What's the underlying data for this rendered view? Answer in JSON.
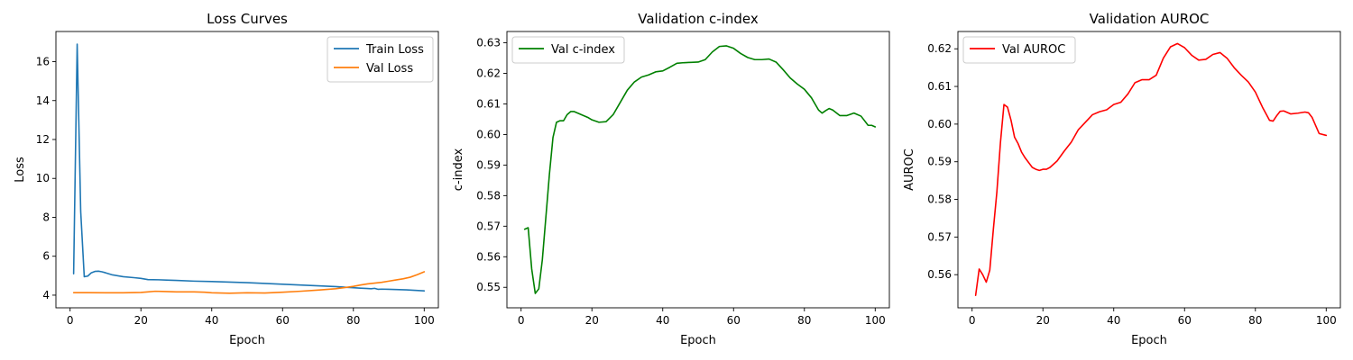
{
  "chart_data": [
    {
      "type": "line",
      "title": "Loss Curves",
      "xlabel": "Epoch",
      "ylabel": "Loss",
      "xlim": [
        -4,
        104
      ],
      "ylim": [
        3.35,
        17.55
      ],
      "xticks": [
        0,
        20,
        40,
        60,
        80,
        100
      ],
      "yticks": [
        4,
        6,
        8,
        10,
        12,
        14,
        16
      ],
      "tick_decimals": 0,
      "grid": false,
      "legend": "top-right",
      "series": [
        {
          "name": "Train Loss",
          "color": "#1f77b4",
          "x": [
            1,
            2,
            3,
            4,
            5,
            6,
            7,
            8,
            9,
            10,
            12,
            15,
            18,
            20,
            22,
            25,
            28,
            30,
            35,
            40,
            45,
            50,
            55,
            60,
            65,
            70,
            75,
            80,
            82,
            84,
            85,
            86,
            87,
            88,
            90,
            95,
            100
          ],
          "y": [
            5.1,
            16.9,
            8.3,
            4.95,
            4.98,
            5.15,
            5.22,
            5.23,
            5.2,
            5.15,
            5.04,
            4.95,
            4.9,
            4.86,
            4.8,
            4.79,
            4.77,
            4.76,
            4.72,
            4.7,
            4.67,
            4.64,
            4.6,
            4.56,
            4.52,
            4.48,
            4.44,
            4.38,
            4.36,
            4.34,
            4.33,
            4.35,
            4.3,
            4.31,
            4.3,
            4.27,
            4.22
          ]
        },
        {
          "name": "Val Loss",
          "color": "#ff7f0e",
          "x": [
            1,
            5,
            10,
            15,
            20,
            22,
            24,
            26,
            30,
            35,
            38,
            40,
            45,
            50,
            55,
            60,
            65,
            70,
            75,
            78,
            80,
            82,
            84,
            86,
            88,
            90,
            92,
            94,
            96,
            98,
            100
          ],
          "y": [
            4.13,
            4.13,
            4.12,
            4.12,
            4.14,
            4.17,
            4.2,
            4.19,
            4.17,
            4.17,
            4.15,
            4.12,
            4.1,
            4.12,
            4.11,
            4.15,
            4.2,
            4.26,
            4.33,
            4.4,
            4.45,
            4.52,
            4.58,
            4.62,
            4.66,
            4.72,
            4.78,
            4.84,
            4.92,
            5.05,
            5.2
          ]
        }
      ]
    },
    {
      "type": "line",
      "title": "Validation c-index",
      "xlabel": "Epoch",
      "ylabel": "c-index",
      "xlim": [
        -4,
        104
      ],
      "ylim": [
        0.5433,
        0.6337
      ],
      "xticks": [
        0,
        20,
        40,
        60,
        80,
        100
      ],
      "yticks": [
        0.55,
        0.56,
        0.57,
        0.58,
        0.59,
        0.6,
        0.61,
        0.62,
        0.63
      ],
      "tick_decimals": 2,
      "grid": false,
      "legend": "top-left",
      "series": [
        {
          "name": "Val c-index",
          "color": "#008000",
          "x": [
            1,
            2,
            3,
            4,
            5,
            6,
            7,
            8,
            9,
            10,
            11,
            12,
            13,
            14,
            15,
            17,
            19,
            20,
            22,
            24,
            26,
            28,
            30,
            32,
            34,
            36,
            38,
            40,
            42,
            44,
            46,
            48,
            50,
            52,
            54,
            56,
            58,
            60,
            62,
            64,
            66,
            68,
            70,
            72,
            74,
            76,
            78,
            80,
            82,
            84,
            85,
            86,
            87,
            88,
            90,
            92,
            94,
            96,
            98,
            99,
            100
          ],
          "y": [
            0.569,
            0.5695,
            0.556,
            0.548,
            0.5495,
            0.559,
            0.573,
            0.587,
            0.599,
            0.604,
            0.6045,
            0.6045,
            0.6065,
            0.6075,
            0.6075,
            0.6065,
            0.6055,
            0.6048,
            0.604,
            0.6042,
            0.6065,
            0.6105,
            0.6145,
            0.6172,
            0.6188,
            0.6195,
            0.6205,
            0.6208,
            0.622,
            0.6233,
            0.6235,
            0.6236,
            0.6237,
            0.6245,
            0.627,
            0.6288,
            0.629,
            0.6282,
            0.6265,
            0.6252,
            0.6245,
            0.6245,
            0.6247,
            0.6237,
            0.6212,
            0.6185,
            0.6165,
            0.6148,
            0.612,
            0.608,
            0.607,
            0.6078,
            0.6085,
            0.608,
            0.6062,
            0.6062,
            0.607,
            0.606,
            0.603,
            0.603,
            0.6025
          ]
        }
      ]
    },
    {
      "type": "line",
      "title": "Validation AUROC",
      "xlabel": "Epoch",
      "ylabel": "AUROC",
      "xlim": [
        -4,
        104
      ],
      "ylim": [
        0.5512,
        0.6246
      ],
      "xticks": [
        0,
        20,
        40,
        60,
        80,
        100
      ],
      "yticks": [
        0.56,
        0.57,
        0.58,
        0.59,
        0.6,
        0.61,
        0.62
      ],
      "tick_decimals": 2,
      "grid": false,
      "legend": "top-left",
      "series": [
        {
          "name": "Val AUROC",
          "color": "#ff0000",
          "x": [
            1,
            2,
            3,
            4,
            5,
            6,
            7,
            8,
            9,
            10,
            11,
            12,
            13,
            14,
            15,
            17,
            18,
            19,
            20,
            21,
            22,
            24,
            26,
            28,
            30,
            32,
            34,
            36,
            38,
            40,
            42,
            44,
            46,
            48,
            50,
            52,
            54,
            56,
            58,
            60,
            62,
            64,
            66,
            68,
            70,
            72,
            74,
            76,
            78,
            80,
            82,
            84,
            85,
            86,
            87,
            88,
            90,
            92,
            94,
            95,
            96,
            98,
            100
          ],
          "y": [
            0.5545,
            0.5615,
            0.56,
            0.558,
            0.5612,
            0.572,
            0.582,
            0.595,
            0.6052,
            0.6045,
            0.601,
            0.5965,
            0.5948,
            0.5925,
            0.591,
            0.5885,
            0.588,
            0.5877,
            0.588,
            0.588,
            0.5885,
            0.5902,
            0.5928,
            0.5952,
            0.5985,
            0.6005,
            0.6025,
            0.6033,
            0.6038,
            0.6052,
            0.6058,
            0.608,
            0.611,
            0.6118,
            0.6118,
            0.613,
            0.6175,
            0.6205,
            0.6214,
            0.6203,
            0.6183,
            0.617,
            0.6172,
            0.6185,
            0.619,
            0.6175,
            0.615,
            0.613,
            0.6112,
            0.6085,
            0.6045,
            0.601,
            0.6008,
            0.6022,
            0.6034,
            0.6035,
            0.6027,
            0.6029,
            0.6032,
            0.603,
            0.6018,
            0.5975,
            0.597
          ]
        }
      ]
    }
  ]
}
